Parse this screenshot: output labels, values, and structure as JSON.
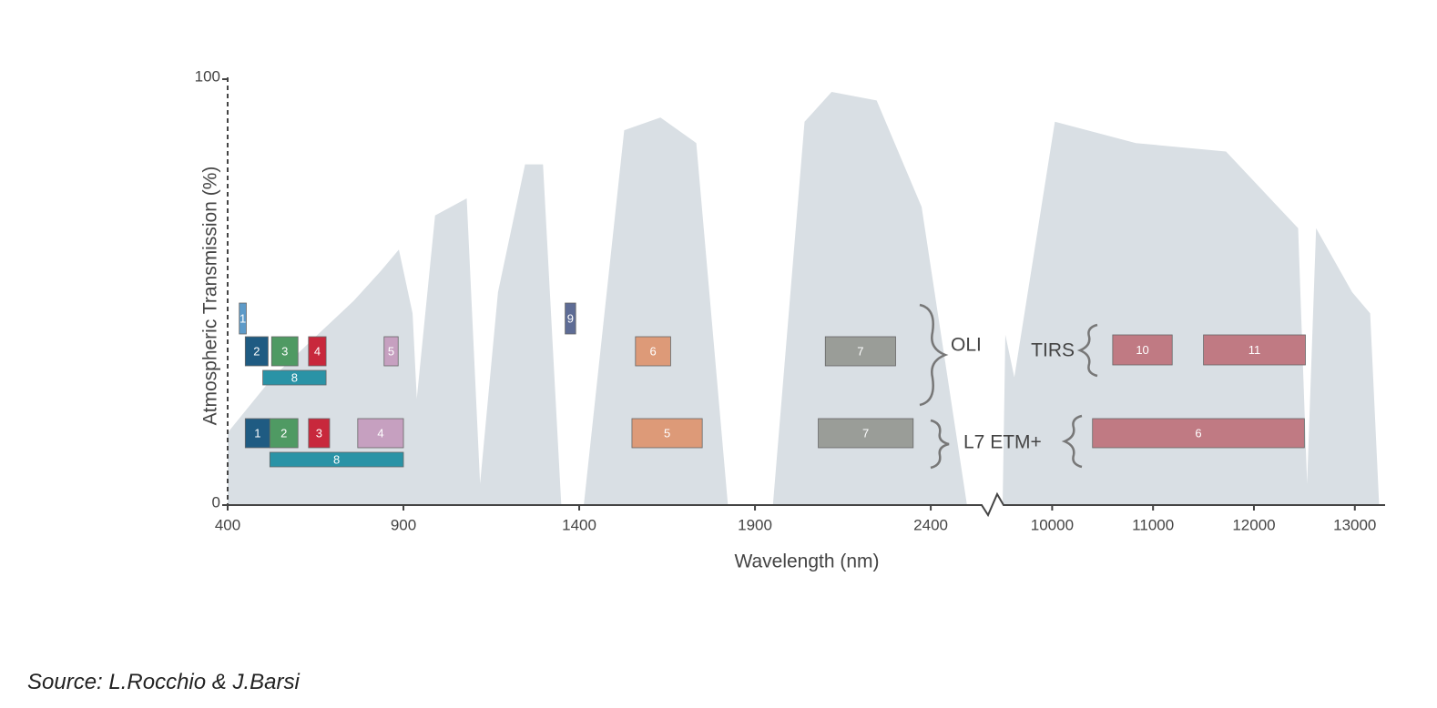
{
  "chart_data": {
    "type": "area",
    "ylabel": "Atmospheric Transmission (%)",
    "xlabel": "Wavelength (nm)",
    "ylim": [
      0,
      100
    ],
    "yticks": [
      0,
      100
    ],
    "color": "#d9dfe4",
    "segments": [
      {
        "xlim": [
          400,
          2550
        ],
        "xticks": [
          400,
          900,
          1400,
          1900,
          2400
        ],
        "x": [
          400,
          528,
          656,
          759,
          836,
          887,
          926,
          938,
          990,
          1080,
          1118,
          1169,
          1246,
          1297,
          1349,
          1413,
          1528,
          1631,
          1733,
          1823,
          1951,
          2041,
          2118,
          2246,
          2374,
          2503
        ],
        "values": [
          17,
          30,
          40,
          48,
          55,
          60,
          45,
          25,
          68,
          72,
          5,
          50,
          80,
          80,
          0,
          0,
          88,
          91,
          85,
          0,
          0,
          90,
          97,
          95,
          70,
          0
        ]
      },
      {
        "xlim": [
          9500,
          13300
        ],
        "xticks": [
          10000,
          11000,
          12000,
          13000
        ],
        "x": [
          9509,
          9536,
          9625,
          10027,
          10830,
          11723,
          12438,
          12527,
          12616,
          12973,
          13152,
          13241
        ],
        "values": [
          0,
          40,
          30,
          90,
          85,
          83,
          65,
          5,
          65,
          50,
          45,
          0
        ]
      }
    ],
    "groups": [
      {
        "label": "OLI",
        "rows": [
          [
            {
              "label": "1",
              "x": [
                433,
                453
              ],
              "color": "#5e9bc9"
            },
            {
              "label": "9",
              "x": [
                1360,
                1390
              ],
              "color": "#5e6c95"
            }
          ],
          [
            {
              "label": "2",
              "x": [
                450,
                515
              ],
              "color": "#1f5b82"
            },
            {
              "label": "3",
              "x": [
                525,
                600
              ],
              "color": "#4f9a63"
            },
            {
              "label": "4",
              "x": [
                630,
                680
              ],
              "color": "#c8283c"
            },
            {
              "label": "5",
              "x": [
                845,
                885
              ],
              "color": "#c6a0c0"
            },
            {
              "label": "6",
              "x": [
                1560,
                1660
              ],
              "color": "#dd9a78"
            },
            {
              "label": "7",
              "x": [
                2100,
                2300
              ],
              "color": "#9a9d98"
            }
          ],
          [
            {
              "label": "8",
              "x": [
                500,
                680
              ],
              "color": "#2a93a6"
            }
          ]
        ]
      },
      {
        "label": "TIRS",
        "rows": [
          [
            {
              "label": "10",
              "x": [
                10600,
                11190
              ],
              "color": "#c07a83"
            },
            {
              "label": "11",
              "x": [
                11500,
                12510
              ],
              "color": "#c07a83"
            }
          ]
        ]
      },
      {
        "label": "L7 ETM+",
        "rows": [
          [
            {
              "label": "1",
              "x": [
                450,
                520
              ],
              "color": "#1f5b82"
            },
            {
              "label": "2",
              "x": [
                520,
                600
              ],
              "color": "#4f9a63"
            },
            {
              "label": "3",
              "x": [
                630,
                690
              ],
              "color": "#c8283c"
            },
            {
              "label": "4",
              "x": [
                770,
                900
              ],
              "color": "#c6a0c0"
            },
            {
              "label": "5",
              "x": [
                1550,
                1750
              ],
              "color": "#dd9a78"
            },
            {
              "label": "7",
              "x": [
                2080,
                2350
              ],
              "color": "#9a9d98"
            },
            {
              "label": "6",
              "x": [
                10400,
                12500
              ],
              "color": "#c07a83"
            }
          ],
          [
            {
              "label": "8",
              "x": [
                520,
                900
              ],
              "color": "#2a93a6"
            }
          ]
        ]
      }
    ]
  },
  "source": "Source: L.Rocchio & J.Barsi"
}
